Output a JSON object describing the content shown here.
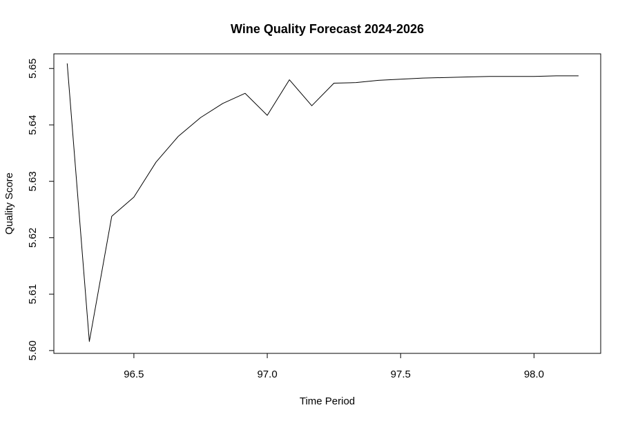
{
  "chart_data": {
    "type": "line",
    "title": "Wine Quality Forecast 2024-2026",
    "xlabel": "Time Period",
    "ylabel": "Quality Score",
    "xlim": [
      96.2,
      98.25
    ],
    "ylim": [
      5.5995,
      5.6526
    ],
    "x_ticks": [
      96.5,
      97.0,
      97.5,
      98.0
    ],
    "x_tick_labels": [
      "96.5",
      "97.0",
      "97.5",
      "98.0"
    ],
    "y_ticks": [
      5.6,
      5.61,
      5.62,
      5.63,
      5.64,
      5.65
    ],
    "y_tick_labels": [
      "5.60",
      "5.61",
      "5.62",
      "5.63",
      "5.64",
      "5.65"
    ],
    "grid": false,
    "line_color": "#000000",
    "series": [
      {
        "x": [
          96.25,
          96.333,
          96.417,
          96.5,
          96.583,
          96.667,
          96.75,
          96.833,
          96.917,
          97.0,
          97.083,
          97.167,
          97.25,
          97.333,
          97.417,
          97.5,
          97.583,
          97.667,
          97.75,
          97.833,
          97.917,
          98.0,
          98.083,
          98.167
        ],
        "y": [
          5.6509,
          5.6016,
          5.6238,
          5.6272,
          5.6334,
          5.638,
          5.6413,
          5.6438,
          5.6456,
          5.6417,
          5.648,
          5.6434,
          5.6474,
          5.6475,
          5.6479,
          5.6481,
          5.6483,
          5.6484,
          5.6485,
          5.6486,
          5.6486,
          5.6486,
          5.6487,
          5.6487
        ]
      }
    ]
  }
}
